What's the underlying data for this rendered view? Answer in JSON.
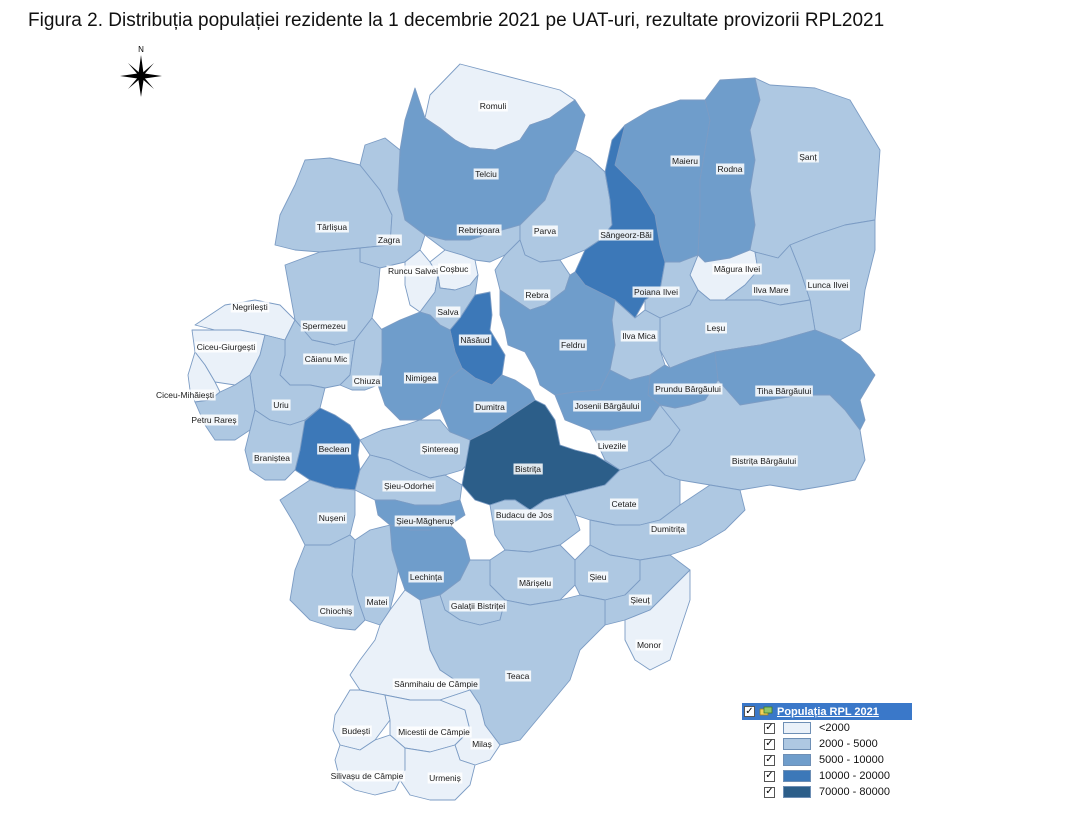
{
  "title": "Figura 2. Distribuția populației rezidente la 1 decembrie 2021 pe UAT-uri, rezultate provizorii RPL2021",
  "compass": {
    "label": "N",
    "icon": "north-arrow-star-icon"
  },
  "legend": {
    "title": "Populația RPL 2021",
    "classes": [
      {
        "label": "<2000",
        "color": "#eaf1f9"
      },
      {
        "label": "2000 - 5000",
        "color": "#aec8e2"
      },
      {
        "label": "5000 - 10000",
        "color": "#6f9dcb"
      },
      {
        "label": "10000 - 20000",
        "color": "#3c78b8"
      },
      {
        "label": "70000 - 80000",
        "color": "#2c5e89"
      }
    ]
  },
  "units": [
    {
      "name": "Romuli",
      "class": 0
    },
    {
      "name": "Telciu",
      "class": 2
    },
    {
      "name": "Maieru",
      "class": 2
    },
    {
      "name": "Rodna",
      "class": 2
    },
    {
      "name": "Șanț",
      "class": 1
    },
    {
      "name": "Târlișua",
      "class": 1
    },
    {
      "name": "Zagra",
      "class": 1
    },
    {
      "name": "Rebrișoara",
      "class": 1
    },
    {
      "name": "Parva",
      "class": 1
    },
    {
      "name": "Sângeorz-Băi",
      "class": 3
    },
    {
      "name": "Runcu Salvei",
      "class": 0
    },
    {
      "name": "Coșbuc",
      "class": 0
    },
    {
      "name": "Măgura Ilvei",
      "class": 0
    },
    {
      "name": "Ilva Mare",
      "class": 1
    },
    {
      "name": "Lunca Ilvei",
      "class": 1
    },
    {
      "name": "Rebra",
      "class": 1
    },
    {
      "name": "Poiana Ilvei",
      "class": 1
    },
    {
      "name": "Negrilești",
      "class": 0
    },
    {
      "name": "Spermezeu",
      "class": 1
    },
    {
      "name": "Salva",
      "class": 1
    },
    {
      "name": "Leșu",
      "class": 1
    },
    {
      "name": "Ciceu-Giurgești",
      "class": 0
    },
    {
      "name": "Năsăud",
      "class": 3
    },
    {
      "name": "Feldru",
      "class": 2
    },
    {
      "name": "Ilva Mica",
      "class": 1
    },
    {
      "name": "Căianu Mic",
      "class": 1
    },
    {
      "name": "Nimigea",
      "class": 2
    },
    {
      "name": "Chiuza",
      "class": 1
    },
    {
      "name": "Prundu Bârgăului",
      "class": 2
    },
    {
      "name": "Tiha Bârgăului",
      "class": 2
    },
    {
      "name": "Ciceu-Mihăiești",
      "class": 0
    },
    {
      "name": "Uriu",
      "class": 1
    },
    {
      "name": "Dumitra",
      "class": 2
    },
    {
      "name": "Josenii Bârgăului",
      "class": 2
    },
    {
      "name": "Petru Rareș",
      "class": 1
    },
    {
      "name": "Livezile",
      "class": 1
    },
    {
      "name": "Beclean",
      "class": 3
    },
    {
      "name": "Șintereag",
      "class": 1
    },
    {
      "name": "Braniștea",
      "class": 1
    },
    {
      "name": "Bistrița",
      "class": 4
    },
    {
      "name": "Bistrița Bârgăului",
      "class": 1
    },
    {
      "name": "Șieu-Odorhei",
      "class": 1
    },
    {
      "name": "Cetate",
      "class": 1
    },
    {
      "name": "Nușeni",
      "class": 1
    },
    {
      "name": "Șieu-Măgheruș",
      "class": 2
    },
    {
      "name": "Budacu de Jos",
      "class": 1
    },
    {
      "name": "Dumitrița",
      "class": 1
    },
    {
      "name": "Lechința",
      "class": 2
    },
    {
      "name": "Mărișelu",
      "class": 1
    },
    {
      "name": "Șieu",
      "class": 1
    },
    {
      "name": "Matei",
      "class": 1
    },
    {
      "name": "Șieuț",
      "class": 1
    },
    {
      "name": "Chiochiș",
      "class": 1
    },
    {
      "name": "Galații Bistriței",
      "class": 1
    },
    {
      "name": "Monor",
      "class": 0
    },
    {
      "name": "Teaca",
      "class": 1
    },
    {
      "name": "Sânmihaiu de Câmpie",
      "class": 0
    },
    {
      "name": "Budești",
      "class": 0
    },
    {
      "name": "Micestii de Câmpie",
      "class": 0
    },
    {
      "name": "Milaș",
      "class": 0
    },
    {
      "name": "Silivașu de Câmpie",
      "class": 0
    },
    {
      "name": "Urmeniș",
      "class": 0
    }
  ]
}
